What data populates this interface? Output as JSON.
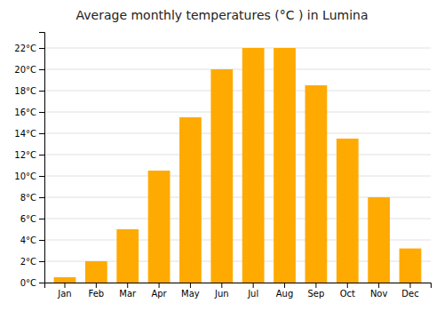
{
  "chart_data": {
    "type": "bar",
    "title": "Average monthly temperatures (°C ) in Lumina",
    "categories": [
      "Jan",
      "Feb",
      "Mar",
      "Apr",
      "May",
      "Jun",
      "Jul",
      "Aug",
      "Sep",
      "Oct",
      "Nov",
      "Dec"
    ],
    "values": [
      0.5,
      2.0,
      5.0,
      10.5,
      15.5,
      20.0,
      22.0,
      22.0,
      18.5,
      13.5,
      8.0,
      3.2
    ],
    "color": "#FFAA00",
    "ylim": [
      0,
      23.5
    ],
    "yticks": [
      {
        "value": 0,
        "label": "0°C"
      },
      {
        "value": 2,
        "label": "2°C"
      },
      {
        "value": 4,
        "label": "4°C"
      },
      {
        "value": 6,
        "label": "6°C"
      },
      {
        "value": 8,
        "label": "8°C"
      },
      {
        "value": 10,
        "label": "10°C"
      },
      {
        "value": 12,
        "label": "12°C"
      },
      {
        "value": 14,
        "label": "14°C"
      },
      {
        "value": 16,
        "label": "16°C"
      },
      {
        "value": 18,
        "label": "18°C"
      },
      {
        "value": 20,
        "label": "20°C"
      },
      {
        "value": 22,
        "label": "22°C"
      }
    ],
    "grid": true
  }
}
